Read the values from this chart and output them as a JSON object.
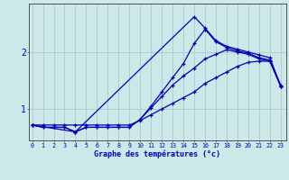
{
  "xlabel": "Graphe des températures (°c)",
  "background_color": "#cce8e8",
  "grid_color": "#aacccc",
  "line_color": "#0000bb",
  "x_ticks": [
    0,
    1,
    2,
    3,
    4,
    5,
    6,
    7,
    8,
    9,
    10,
    11,
    12,
    13,
    14,
    15,
    16,
    17,
    18,
    19,
    20,
    21,
    22,
    23
  ],
  "ylim": [
    0.45,
    2.85
  ],
  "xlim": [
    -0.3,
    23.5
  ],
  "line1_x": [
    0,
    1,
    2,
    3,
    4,
    5,
    6,
    7,
    8,
    9,
    10,
    11,
    12,
    13,
    14,
    15,
    16,
    17,
    18,
    19,
    20,
    21,
    22,
    23
  ],
  "line1_y": [
    0.72,
    0.72,
    0.72,
    0.72,
    0.72,
    0.72,
    0.72,
    0.72,
    0.72,
    0.72,
    0.8,
    0.9,
    1.0,
    1.1,
    1.2,
    1.3,
    1.45,
    1.55,
    1.65,
    1.75,
    1.82,
    1.84,
    1.84,
    1.42
  ],
  "line2_x": [
    0,
    1,
    2,
    3,
    4,
    5,
    6,
    7,
    8,
    9,
    10,
    11,
    12,
    13,
    14,
    15,
    16,
    17,
    18,
    19,
    20,
    21,
    22,
    23
  ],
  "line2_y": [
    0.72,
    0.68,
    0.68,
    0.68,
    0.6,
    0.68,
    0.68,
    0.68,
    0.68,
    0.68,
    0.82,
    1.02,
    1.22,
    1.42,
    1.58,
    1.72,
    1.88,
    1.96,
    2.04,
    2.0,
    1.96,
    1.88,
    1.84,
    1.4
  ],
  "line3_x": [
    0,
    1,
    2,
    3,
    4,
    5,
    6,
    7,
    8,
    9,
    10,
    11,
    12,
    13,
    14,
    15,
    16,
    17,
    18,
    19,
    20,
    21,
    22,
    23
  ],
  "line3_y": [
    0.72,
    0.68,
    0.68,
    0.68,
    0.6,
    0.68,
    0.68,
    0.68,
    0.68,
    0.68,
    0.82,
    1.05,
    1.3,
    1.55,
    1.8,
    2.15,
    2.4,
    2.18,
    2.08,
    2.02,
    1.98,
    1.9,
    1.86,
    1.4
  ],
  "line4_x": [
    0,
    4,
    15,
    16,
    17,
    18,
    19,
    20,
    21,
    22,
    23
  ],
  "line4_y": [
    0.72,
    0.6,
    2.62,
    2.42,
    2.2,
    2.1,
    2.05,
    2.0,
    1.95,
    1.9,
    1.4
  ],
  "ytick_vals": [
    1,
    2
  ],
  "ytick_labels": [
    "1",
    "2"
  ],
  "xlabel_fontsize": 6.0,
  "xtick_fontsize": 4.8,
  "ytick_fontsize": 7.0
}
